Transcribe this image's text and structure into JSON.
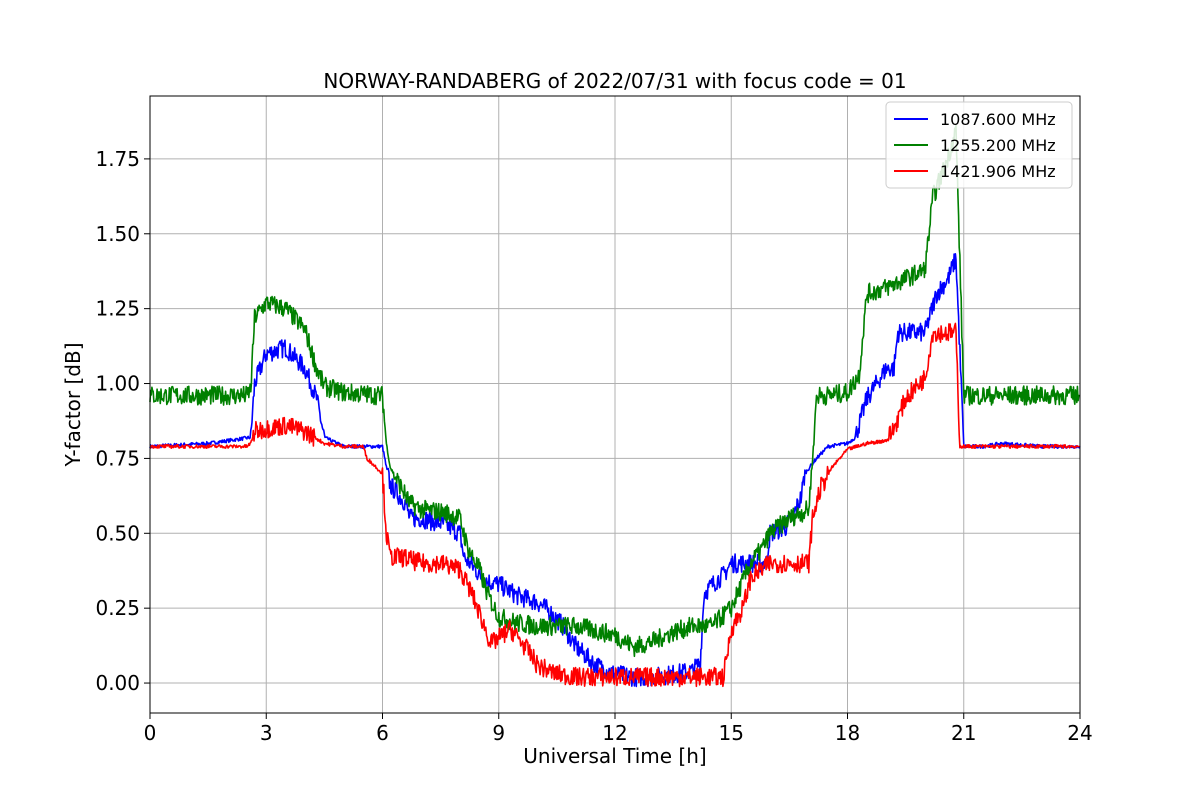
{
  "chart_data": {
    "type": "line",
    "title": "NORWAY-RANDABERG of 2022/07/31 with focus code = 01",
    "xlabel": "Universal Time [h]",
    "ylabel": "Y-factor [dB]",
    "xlim": [
      0,
      24
    ],
    "ylim": [
      -0.1,
      1.96
    ],
    "xticks": [
      0,
      3,
      6,
      9,
      12,
      15,
      18,
      21,
      24
    ],
    "xtick_labels": [
      "0",
      "3",
      "6",
      "9",
      "12",
      "15",
      "18",
      "21",
      "24"
    ],
    "yticks": [
      0.0,
      0.25,
      0.5,
      0.75,
      1.0,
      1.25,
      1.5,
      1.75
    ],
    "ytick_labels": [
      "0.00",
      "0.25",
      "0.50",
      "0.75",
      "1.00",
      "1.25",
      "1.50",
      "1.75"
    ],
    "grid": true,
    "legend_position": "top-right",
    "series": [
      {
        "name": "1087.600 MHz",
        "color": "#0000ff",
        "noise": 0.02,
        "x": [
          0,
          1.5,
          2.6,
          2.7,
          3.0,
          3.5,
          4.0,
          4.3,
          4.5,
          5.0,
          6.0,
          6.1,
          6.2,
          6.6,
          6.7,
          7.0,
          7.6,
          8.0,
          8.1,
          8.4,
          8.5,
          8.7,
          9.0,
          9.5,
          10.0,
          10.3,
          10.6,
          11.0,
          11.5,
          12.0,
          12.5,
          13.0,
          13.5,
          14.0,
          14.2,
          14.3,
          14.6,
          14.8,
          14.9,
          15.0,
          15.5,
          15.9,
          16.0,
          16.4,
          16.6,
          16.8,
          16.9,
          17.2,
          17.5,
          18.0,
          18.2,
          18.5,
          19.0,
          19.2,
          19.3,
          19.8,
          20.0,
          20.3,
          20.6,
          20.8,
          21.0,
          21.5,
          22.0,
          23.0,
          24.0
        ],
        "y": [
          0.79,
          0.8,
          0.82,
          1.0,
          1.1,
          1.12,
          1.05,
          0.95,
          0.82,
          0.79,
          0.79,
          0.72,
          0.66,
          0.6,
          0.55,
          0.55,
          0.53,
          0.5,
          0.42,
          0.38,
          0.36,
          0.34,
          0.33,
          0.29,
          0.27,
          0.24,
          0.2,
          0.12,
          0.06,
          0.03,
          0.02,
          0.02,
          0.03,
          0.04,
          0.07,
          0.3,
          0.34,
          0.36,
          0.38,
          0.4,
          0.4,
          0.4,
          0.5,
          0.52,
          0.56,
          0.62,
          0.7,
          0.75,
          0.79,
          0.8,
          0.82,
          0.95,
          1.05,
          1.05,
          1.17,
          1.17,
          1.17,
          1.3,
          1.35,
          1.42,
          0.79,
          0.79,
          0.8,
          0.79,
          0.79
        ]
      },
      {
        "name": "1255.200 MHz",
        "color": "#008000",
        "noise": 0.02,
        "x": [
          0,
          2.5,
          2.6,
          2.7,
          3.0,
          3.5,
          4.0,
          4.3,
          4.5,
          5.0,
          6.0,
          6.1,
          6.2,
          6.5,
          6.7,
          7.0,
          7.6,
          8.0,
          8.2,
          8.5,
          8.7,
          9.0,
          9.5,
          10.0,
          11.0,
          12.0,
          12.5,
          13.0,
          13.5,
          14.0,
          14.5,
          15.0,
          15.5,
          15.8,
          16.0,
          16.5,
          17.0,
          17.1,
          17.2,
          17.5,
          18.0,
          18.3,
          18.5,
          19.0,
          19.5,
          20.0,
          20.2,
          20.5,
          20.7,
          20.8,
          21.0,
          22.0,
          24.0
        ],
        "y": [
          0.96,
          0.96,
          0.98,
          1.22,
          1.27,
          1.25,
          1.18,
          1.05,
          0.99,
          0.97,
          0.96,
          0.8,
          0.72,
          0.65,
          0.6,
          0.58,
          0.57,
          0.55,
          0.45,
          0.38,
          0.3,
          0.22,
          0.2,
          0.19,
          0.19,
          0.16,
          0.12,
          0.14,
          0.17,
          0.19,
          0.19,
          0.25,
          0.4,
          0.45,
          0.5,
          0.55,
          0.58,
          0.75,
          0.96,
          0.96,
          0.97,
          1.03,
          1.3,
          1.32,
          1.35,
          1.38,
          1.62,
          1.72,
          1.8,
          1.85,
          0.96,
          0.96,
          0.96
        ]
      },
      {
        "name": "1421.906 MHz",
        "color": "#ff0000",
        "noise": 0.02,
        "x": [
          0,
          2.5,
          2.6,
          2.7,
          3.0,
          3.5,
          4.0,
          4.5,
          5.0,
          5.5,
          5.6,
          6.0,
          6.1,
          6.2,
          6.5,
          7.0,
          7.5,
          8.0,
          8.3,
          8.6,
          8.8,
          9.0,
          9.3,
          9.5,
          9.8,
          10.0,
          10.3,
          10.5,
          11.0,
          12.0,
          13.0,
          14.0,
          14.5,
          14.8,
          14.9,
          15.0,
          15.3,
          15.5,
          16.0,
          16.5,
          17.0,
          17.1,
          17.3,
          17.6,
          18.0,
          18.5,
          19.0,
          19.2,
          19.5,
          20.0,
          20.2,
          20.8,
          20.9,
          21.0,
          22.0,
          24.0
        ],
        "y": [
          0.79,
          0.79,
          0.8,
          0.84,
          0.85,
          0.86,
          0.84,
          0.8,
          0.79,
          0.79,
          0.75,
          0.7,
          0.5,
          0.42,
          0.42,
          0.4,
          0.4,
          0.38,
          0.3,
          0.2,
          0.13,
          0.15,
          0.18,
          0.15,
          0.1,
          0.06,
          0.04,
          0.03,
          0.02,
          0.02,
          0.02,
          0.02,
          0.02,
          0.02,
          0.1,
          0.18,
          0.25,
          0.35,
          0.4,
          0.4,
          0.4,
          0.55,
          0.65,
          0.72,
          0.78,
          0.8,
          0.81,
          0.85,
          0.95,
          1.02,
          1.17,
          1.17,
          0.79,
          0.79,
          0.79,
          0.79
        ]
      }
    ]
  }
}
